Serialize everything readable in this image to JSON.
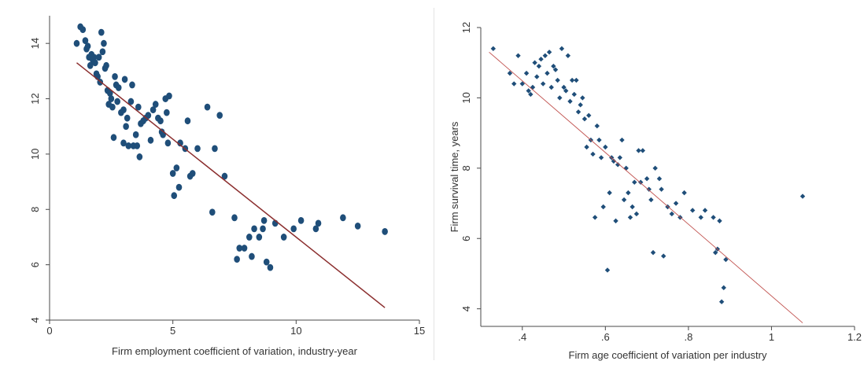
{
  "chart_data": [
    {
      "type": "scatter",
      "marker": "circle",
      "xlabel": "Firm employment coefficient of variation, industry-year",
      "ylabel": "",
      "xlim": [
        0,
        15
      ],
      "ylim": [
        4,
        15
      ],
      "xticks": [
        "0",
        "5",
        "10",
        "15"
      ],
      "yticks": [
        "4",
        "6",
        "8",
        "10",
        "12",
        "14"
      ],
      "grid": false,
      "colors": {
        "points": "#1f4e79",
        "fit": "#8b2e2e"
      },
      "fit_line": {
        "x": [
          1.1,
          13.6
        ],
        "y": [
          13.3,
          4.45
        ]
      },
      "points": [
        [
          1.1,
          14.0
        ],
        [
          1.25,
          14.6
        ],
        [
          1.35,
          14.5
        ],
        [
          1.45,
          14.1
        ],
        [
          1.5,
          13.8
        ],
        [
          1.55,
          13.9
        ],
        [
          1.6,
          13.5
        ],
        [
          1.65,
          13.2
        ],
        [
          1.7,
          13.6
        ],
        [
          1.75,
          13.4
        ],
        [
          1.8,
          13.5
        ],
        [
          1.85,
          13.3
        ],
        [
          1.9,
          12.9
        ],
        [
          1.95,
          12.8
        ],
        [
          2.0,
          13.5
        ],
        [
          2.05,
          12.6
        ],
        [
          2.1,
          14.4
        ],
        [
          2.15,
          13.7
        ],
        [
          2.2,
          14.0
        ],
        [
          2.25,
          13.1
        ],
        [
          2.3,
          13.2
        ],
        [
          2.35,
          12.3
        ],
        [
          2.4,
          11.8
        ],
        [
          2.45,
          12.2
        ],
        [
          2.5,
          12.0
        ],
        [
          2.55,
          11.7
        ],
        [
          2.6,
          10.6
        ],
        [
          2.65,
          12.8
        ],
        [
          2.7,
          12.5
        ],
        [
          2.75,
          11.9
        ],
        [
          2.8,
          12.4
        ],
        [
          2.9,
          11.5
        ],
        [
          3.0,
          11.6
        ],
        [
          3.0,
          10.4
        ],
        [
          3.05,
          12.7
        ],
        [
          3.1,
          11.0
        ],
        [
          3.15,
          11.3
        ],
        [
          3.2,
          10.3
        ],
        [
          3.3,
          11.9
        ],
        [
          3.35,
          12.5
        ],
        [
          3.4,
          10.3
        ],
        [
          3.5,
          10.7
        ],
        [
          3.55,
          10.3
        ],
        [
          3.6,
          11.7
        ],
        [
          3.65,
          9.9
        ],
        [
          3.7,
          11.1
        ],
        [
          3.8,
          11.2
        ],
        [
          3.9,
          11.3
        ],
        [
          4.0,
          11.4
        ],
        [
          4.1,
          10.5
        ],
        [
          4.2,
          11.6
        ],
        [
          4.3,
          11.8
        ],
        [
          4.4,
          11.3
        ],
        [
          4.5,
          11.2
        ],
        [
          4.55,
          10.8
        ],
        [
          4.6,
          10.7
        ],
        [
          4.7,
          12.0
        ],
        [
          4.75,
          11.5
        ],
        [
          4.8,
          10.4
        ],
        [
          4.85,
          12.1
        ],
        [
          5.0,
          9.3
        ],
        [
          5.05,
          8.5
        ],
        [
          5.15,
          9.5
        ],
        [
          5.25,
          8.8
        ],
        [
          5.3,
          10.4
        ],
        [
          5.5,
          10.2
        ],
        [
          5.6,
          11.2
        ],
        [
          5.7,
          9.2
        ],
        [
          5.8,
          9.3
        ],
        [
          6.0,
          10.2
        ],
        [
          6.4,
          11.7
        ],
        [
          6.6,
          7.9
        ],
        [
          6.7,
          10.2
        ],
        [
          6.9,
          11.4
        ],
        [
          7.1,
          9.2
        ],
        [
          7.5,
          7.7
        ],
        [
          7.6,
          6.2
        ],
        [
          7.7,
          6.6
        ],
        [
          7.9,
          6.6
        ],
        [
          8.1,
          7.0
        ],
        [
          8.2,
          6.3
        ],
        [
          8.3,
          7.3
        ],
        [
          8.5,
          7.0
        ],
        [
          8.65,
          7.3
        ],
        [
          8.7,
          7.6
        ],
        [
          8.8,
          6.1
        ],
        [
          8.95,
          5.9
        ],
        [
          9.15,
          7.5
        ],
        [
          9.5,
          7.0
        ],
        [
          9.9,
          7.3
        ],
        [
          10.2,
          7.6
        ],
        [
          10.8,
          7.3
        ],
        [
          10.9,
          7.5
        ],
        [
          11.9,
          7.7
        ],
        [
          12.5,
          7.4
        ],
        [
          13.6,
          7.2
        ]
      ]
    },
    {
      "type": "scatter",
      "marker": "diamond",
      "xlabel": "Firm age coefficient of variation per industry",
      "ylabel": "Firm survival time, years",
      "xlim": [
        0.3,
        1.2
      ],
      "ylim": [
        3.5,
        12
      ],
      "xticks": [
        ".4",
        ".6",
        ".8",
        "1",
        "1.2"
      ],
      "yticks": [
        "4",
        "6",
        "8",
        "10",
        "12"
      ],
      "grid": false,
      "colors": {
        "points": "#1f4e79",
        "fit": "#c0504d"
      },
      "fit_line": {
        "x": [
          0.32,
          1.075
        ],
        "y": [
          11.3,
          3.6
        ]
      },
      "points": [
        [
          0.33,
          11.4
        ],
        [
          0.37,
          10.7
        ],
        [
          0.38,
          10.4
        ],
        [
          0.39,
          11.2
        ],
        [
          0.4,
          10.4
        ],
        [
          0.41,
          10.7
        ],
        [
          0.415,
          10.2
        ],
        [
          0.42,
          10.1
        ],
        [
          0.425,
          10.3
        ],
        [
          0.43,
          11.0
        ],
        [
          0.435,
          10.6
        ],
        [
          0.44,
          10.9
        ],
        [
          0.445,
          11.1
        ],
        [
          0.45,
          10.4
        ],
        [
          0.455,
          11.2
        ],
        [
          0.46,
          10.7
        ],
        [
          0.465,
          11.3
        ],
        [
          0.47,
          10.3
        ],
        [
          0.475,
          10.9
        ],
        [
          0.48,
          10.8
        ],
        [
          0.485,
          10.5
        ],
        [
          0.49,
          10.0
        ],
        [
          0.495,
          11.4
        ],
        [
          0.5,
          10.3
        ],
        [
          0.505,
          10.2
        ],
        [
          0.51,
          11.2
        ],
        [
          0.515,
          9.9
        ],
        [
          0.52,
          10.5
        ],
        [
          0.525,
          10.1
        ],
        [
          0.53,
          10.5
        ],
        [
          0.535,
          9.6
        ],
        [
          0.54,
          9.8
        ],
        [
          0.545,
          10.0
        ],
        [
          0.55,
          9.4
        ],
        [
          0.555,
          8.6
        ],
        [
          0.56,
          9.5
        ],
        [
          0.565,
          8.8
        ],
        [
          0.57,
          8.4
        ],
        [
          0.575,
          6.6
        ],
        [
          0.58,
          9.2
        ],
        [
          0.585,
          8.8
        ],
        [
          0.59,
          8.3
        ],
        [
          0.595,
          6.9
        ],
        [
          0.6,
          8.6
        ],
        [
          0.605,
          5.1
        ],
        [
          0.61,
          7.3
        ],
        [
          0.615,
          8.3
        ],
        [
          0.62,
          8.2
        ],
        [
          0.625,
          6.5
        ],
        [
          0.63,
          8.1
        ],
        [
          0.635,
          8.3
        ],
        [
          0.64,
          8.8
        ],
        [
          0.645,
          7.1
        ],
        [
          0.65,
          8.0
        ],
        [
          0.655,
          7.3
        ],
        [
          0.66,
          6.6
        ],
        [
          0.665,
          6.9
        ],
        [
          0.67,
          7.6
        ],
        [
          0.675,
          6.7
        ],
        [
          0.68,
          8.5
        ],
        [
          0.685,
          7.6
        ],
        [
          0.69,
          8.5
        ],
        [
          0.7,
          7.7
        ],
        [
          0.705,
          7.4
        ],
        [
          0.71,
          7.1
        ],
        [
          0.715,
          5.6
        ],
        [
          0.72,
          8.0
        ],
        [
          0.73,
          7.7
        ],
        [
          0.735,
          7.4
        ],
        [
          0.74,
          5.5
        ],
        [
          0.75,
          6.9
        ],
        [
          0.76,
          6.7
        ],
        [
          0.77,
          7.0
        ],
        [
          0.78,
          6.6
        ],
        [
          0.79,
          7.3
        ],
        [
          0.81,
          6.8
        ],
        [
          0.83,
          6.6
        ],
        [
          0.84,
          6.8
        ],
        [
          0.86,
          6.6
        ],
        [
          0.865,
          5.6
        ],
        [
          0.87,
          5.7
        ],
        [
          0.875,
          6.5
        ],
        [
          0.88,
          4.2
        ],
        [
          0.885,
          4.6
        ],
        [
          0.89,
          5.4
        ],
        [
          1.075,
          7.2
        ]
      ]
    }
  ]
}
